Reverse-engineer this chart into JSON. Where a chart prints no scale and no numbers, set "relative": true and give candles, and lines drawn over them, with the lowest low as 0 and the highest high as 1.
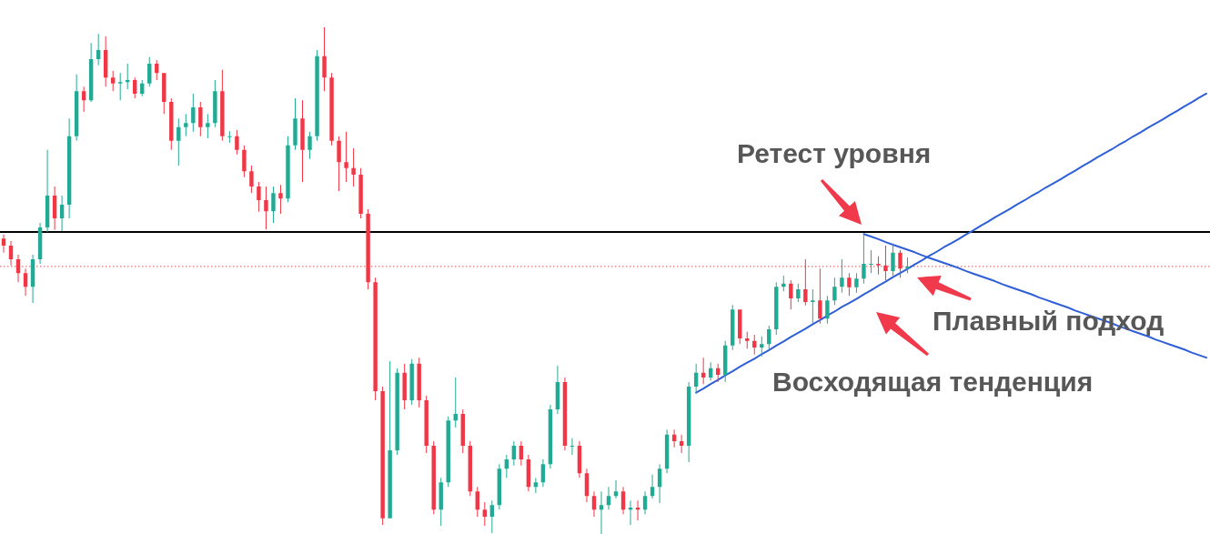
{
  "chart_data": {
    "type": "candlestick",
    "relative": true,
    "categories": [
      null,
      null,
      null,
      null,
      null,
      null,
      null,
      null,
      null,
      null,
      null,
      null,
      null,
      null,
      null,
      null,
      null,
      null,
      null,
      null,
      null,
      null,
      null,
      null,
      null,
      null,
      null,
      null,
      null,
      null,
      null,
      null,
      null,
      null,
      null,
      null,
      null,
      null,
      null,
      null,
      null,
      null,
      null,
      null,
      null,
      null,
      null,
      null,
      null,
      null,
      null,
      null,
      null,
      null,
      null,
      null,
      null,
      null,
      null,
      null,
      null,
      null,
      null,
      null,
      null,
      null,
      null,
      null,
      null,
      null,
      null,
      null,
      null,
      null,
      null,
      null,
      null,
      null,
      null,
      null,
      null,
      null,
      null,
      null,
      null,
      null,
      null,
      null,
      null,
      null,
      null,
      null,
      null,
      null,
      null,
      null,
      null,
      null,
      null,
      null,
      null,
      null,
      null,
      null,
      null,
      null,
      null,
      null,
      null,
      null,
      null,
      null,
      null,
      null,
      null,
      null,
      null,
      null,
      null,
      null,
      null,
      null,
      null,
      null,
      null,
      null,
      null,
      null,
      null,
      null,
      null,
      null,
      null,
      null,
      null,
      null,
      null,
      null,
      null,
      null,
      null,
      null,
      null,
      null,
      null,
      null,
      null,
      null,
      null,
      null,
      null,
      null,
      null,
      null,
      null,
      null,
      null,
      null,
      null,
      null,
      null,
      null,
      null,
      null,
      null,
      null
    ],
    "ohlc": [
      [
        0.583,
        0.591,
        0.555,
        0.569
      ],
      [
        0.569,
        0.578,
        0.53,
        0.542
      ],
      [
        0.542,
        0.551,
        0.497,
        0.515
      ],
      [
        0.515,
        0.524,
        0.47,
        0.488
      ],
      [
        0.488,
        0.551,
        0.456,
        0.542
      ],
      [
        0.542,
        0.614,
        0.533,
        0.605
      ],
      [
        0.605,
        0.758,
        0.596,
        0.668
      ],
      [
        0.668,
        0.686,
        0.6,
        0.623
      ],
      [
        0.623,
        0.668,
        0.598,
        0.65
      ],
      [
        0.65,
        0.82,
        0.623,
        0.785
      ],
      [
        0.785,
        0.907,
        0.776,
        0.874
      ],
      [
        0.874,
        0.883,
        0.833,
        0.856
      ],
      [
        0.856,
        0.969,
        0.853,
        0.937
      ],
      [
        0.937,
        0.987,
        0.925,
        0.955
      ],
      [
        0.955,
        0.982,
        0.883,
        0.901
      ],
      [
        0.901,
        0.914,
        0.874,
        0.889
      ],
      [
        0.889,
        0.91,
        0.856,
        0.892
      ],
      [
        0.892,
        0.928,
        0.878,
        0.896
      ],
      [
        0.896,
        0.901,
        0.86,
        0.869
      ],
      [
        0.869,
        0.896,
        0.864,
        0.889
      ],
      [
        0.889,
        0.941,
        0.883,
        0.928
      ],
      [
        0.928,
        0.935,
        0.896,
        0.91
      ],
      [
        0.91,
        0.91,
        0.829,
        0.853
      ],
      [
        0.853,
        0.86,
        0.758,
        0.776
      ],
      [
        0.776,
        0.82,
        0.727,
        0.803
      ],
      [
        0.803,
        0.829,
        0.785,
        0.811
      ],
      [
        0.811,
        0.869,
        0.794,
        0.842
      ],
      [
        0.842,
        0.853,
        0.785,
        0.803
      ],
      [
        0.803,
        0.829,
        0.781,
        0.811
      ],
      [
        0.811,
        0.896,
        0.803,
        0.874
      ],
      [
        0.874,
        0.916,
        0.776,
        0.785
      ],
      [
        0.785,
        0.795,
        0.772,
        0.785
      ],
      [
        0.785,
        0.797,
        0.749,
        0.758
      ],
      [
        0.758,
        0.767,
        0.704,
        0.716
      ],
      [
        0.716,
        0.727,
        0.673,
        0.686
      ],
      [
        0.686,
        0.695,
        0.636,
        0.659
      ],
      [
        0.659,
        0.686,
        0.601,
        0.637
      ],
      [
        0.637,
        0.686,
        0.614,
        0.673
      ],
      [
        0.673,
        0.689,
        0.632,
        0.662
      ],
      [
        0.662,
        0.785,
        0.655,
        0.767
      ],
      [
        0.767,
        0.86,
        0.758,
        0.82
      ],
      [
        0.82,
        0.856,
        0.695,
        0.758
      ],
      [
        0.758,
        0.794,
        0.74,
        0.785
      ],
      [
        0.785,
        0.955,
        0.776,
        0.943
      ],
      [
        0.943,
        1,
        0.874,
        0.901
      ],
      [
        0.901,
        0.91,
        0.767,
        0.776
      ],
      [
        0.776,
        0.785,
        0.677,
        0.734
      ],
      [
        0.734,
        0.794,
        0.695,
        0.722
      ],
      [
        0.722,
        0.761,
        0.686,
        0.709
      ],
      [
        0.709,
        0.722,
        0.623,
        0.632
      ],
      [
        0.632,
        0.641,
        0.483,
        0.497
      ],
      [
        0.497,
        0.506,
        0.264,
        0.282
      ],
      [
        0.282,
        0.291,
        0.018,
        0.031
      ],
      [
        0.031,
        0.341,
        0.031,
        0.165
      ],
      [
        0.165,
        0.327,
        0.156,
        0.318
      ],
      [
        0.318,
        0.336,
        0.246,
        0.264
      ],
      [
        0.264,
        0.345,
        0.255,
        0.336
      ],
      [
        0.336,
        0.348,
        0.25,
        0.264
      ],
      [
        0.264,
        0.273,
        0.16,
        0.174
      ],
      [
        0.174,
        0.183,
        0.039,
        0.048
      ],
      [
        0.048,
        0.111,
        0.016,
        0.102
      ],
      [
        0.102,
        0.232,
        0.093,
        0.224
      ],
      [
        0.224,
        0.309,
        0.21,
        0.237
      ],
      [
        0.237,
        0.246,
        0.16,
        0.174
      ],
      [
        0.174,
        0.183,
        0.075,
        0.084
      ],
      [
        0.084,
        0.093,
        0.034,
        0.048
      ],
      [
        0.048,
        0.063,
        0.016,
        0.034
      ],
      [
        0.034,
        0.066,
        0.002,
        0.057
      ],
      [
        0.057,
        0.138,
        0.048,
        0.129
      ],
      [
        0.129,
        0.156,
        0.111,
        0.147
      ],
      [
        0.147,
        0.183,
        0.135,
        0.174
      ],
      [
        0.174,
        0.183,
        0.135,
        0.147
      ],
      [
        0.147,
        0.156,
        0.084,
        0.093
      ],
      [
        0.093,
        0.111,
        0.081,
        0.102
      ],
      [
        0.102,
        0.147,
        0.093,
        0.138
      ],
      [
        0.138,
        0.255,
        0.129,
        0.246
      ],
      [
        0.246,
        0.332,
        0.237,
        0.3
      ],
      [
        0.3,
        0.309,
        0.165,
        0.174
      ],
      [
        0.174,
        0.189,
        0.156,
        0.174
      ],
      [
        0.174,
        0.183,
        0.111,
        0.12
      ],
      [
        0.12,
        0.129,
        0.063,
        0.075
      ],
      [
        0.075,
        0.084,
        0.034,
        0.048
      ],
      [
        0.048,
        0.084,
        0,
        0.057
      ],
      [
        0.057,
        0.093,
        0.048,
        0.075
      ],
      [
        0.075,
        0.106,
        0.07,
        0.084
      ],
      [
        0.084,
        0.093,
        0.039,
        0.048
      ],
      [
        0.048,
        0.066,
        0.018,
        0.052
      ],
      [
        0.052,
        0.066,
        0.027,
        0.048
      ],
      [
        0.048,
        0.084,
        0.039,
        0.075
      ],
      [
        0.075,
        0.117,
        0.07,
        0.093
      ],
      [
        0.093,
        0.138,
        0.061,
        0.129
      ],
      [
        0.129,
        0.206,
        0.12,
        0.196
      ],
      [
        0.196,
        0.206,
        0.171,
        0.183
      ],
      [
        0.183,
        0.196,
        0.16,
        0.174
      ],
      [
        0.174,
        0.3,
        0.142,
        0.291
      ],
      [
        0.291,
        0.336,
        0.278,
        0.318
      ],
      [
        0.318,
        0.348,
        0.296,
        0.309
      ],
      [
        0.309,
        0.339,
        0.303,
        0.327
      ],
      [
        0.327,
        0.336,
        0.3,
        0.314
      ],
      [
        0.314,
        0.381,
        0.3,
        0.372
      ],
      [
        0.372,
        0.452,
        0.363,
        0.443
      ],
      [
        0.443,
        0.443,
        0.375,
        0.386
      ],
      [
        0.386,
        0.399,
        0.366,
        0.381
      ],
      [
        0.381,
        0.393,
        0.354,
        0.368
      ],
      [
        0.368,
        0.39,
        0.35,
        0.375
      ],
      [
        0.375,
        0.411,
        0.363,
        0.404
      ],
      [
        0.404,
        0.497,
        0.393,
        0.488
      ],
      [
        0.488,
        0.51,
        0.479,
        0.494
      ],
      [
        0.494,
        0.501,
        0.443,
        0.465
      ],
      [
        0.465,
        0.494,
        0.458,
        0.483
      ],
      [
        0.483,
        0.542,
        0.451,
        0.458
      ],
      [
        0.458,
        0.483,
        0.415,
        0.461
      ],
      [
        0.461,
        0.524,
        0.415,
        0.425
      ],
      [
        0.425,
        0.47,
        0.415,
        0.461
      ],
      [
        0.461,
        0.506,
        0.452,
        0.488
      ],
      [
        0.488,
        0.542,
        0.476,
        0.506
      ],
      [
        0.506,
        0.515,
        0.47,
        0.487
      ],
      [
        0.487,
        0.515,
        0.476,
        0.504
      ],
      [
        0.504,
        0.592,
        0.494,
        0.533
      ],
      [
        0.533,
        0.56,
        0.515,
        0.533
      ],
      [
        0.533,
        0.548,
        0.512,
        0.53
      ],
      [
        0.53,
        0.569,
        0.501,
        0.519
      ],
      [
        0.519,
        0.573,
        0.51,
        0.555
      ],
      [
        0.555,
        0.56,
        0.506,
        0.524
      ],
      [
        0.524,
        0.546,
        0.515,
        0.528
      ],
      null,
      null,
      null,
      null,
      null,
      null,
      null,
      null,
      null,
      null,
      null,
      null,
      null,
      null,
      null,
      null,
      null,
      null,
      null,
      null,
      null,
      null,
      null,
      null,
      null,
      null,
      null,
      null,
      null,
      null,
      null,
      null,
      null,
      null,
      null,
      null,
      null,
      null,
      null,
      null,
      null
    ],
    "colors": [
      "#f23645",
      "#f23645",
      "#f23645",
      "#f23645",
      "#22ab94",
      "#22ab94",
      "#22ab94",
      "#f23645",
      "#22ab94",
      "#22ab94",
      "#22ab94",
      "#f23645",
      "#22ab94",
      "#22ab94",
      "#f23645",
      "#f23645",
      "#22ab94",
      "#22ab94",
      "#f23645",
      "#22ab94",
      "#22ab94",
      "#f23645",
      "#f23645",
      "#f23645",
      "#22ab94",
      "#22ab94",
      "#22ab94",
      "#f23645",
      "#22ab94",
      "#22ab94",
      "#f23645",
      "#22ab94",
      "#f23645",
      "#f23645",
      "#f23645",
      "#f23645",
      "#f23645",
      "#22ab94",
      "#f23645",
      "#22ab94",
      "#22ab94",
      "#f23645",
      "#22ab94",
      "#22ab94",
      "#f23645",
      "#f23645",
      "#f23645",
      "#f23645",
      "#f23645",
      "#f23645",
      "#f23645",
      "#f23645",
      "#f23645",
      "#22ab94",
      "#22ab94",
      "#f23645",
      "#22ab94",
      "#f23645",
      "#f23645",
      "#f23645",
      "#22ab94",
      "#22ab94",
      "#22ab94",
      "#f23645",
      "#f23645",
      "#f23645",
      "#f23645",
      "#22ab94",
      "#22ab94",
      "#22ab94",
      "#22ab94",
      "#f23645",
      "#f23645",
      "#22ab94",
      "#22ab94",
      "#22ab94",
      "#22ab94",
      "#f23645",
      "#22ab94",
      "#f23645",
      "#f23645",
      "#f23645",
      "#22ab94",
      "#22ab94",
      "#22ab94",
      "#f23645",
      "#22ab94",
      "#f23645",
      "#22ab94",
      "#22ab94",
      "#22ab94",
      "#22ab94",
      "#f23645",
      "#f23645",
      "#22ab94",
      "#22ab94",
      "#f23645",
      "#22ab94",
      "#f23645",
      "#22ab94",
      "#22ab94",
      "#f23645",
      "#f23645",
      "#f23645",
      "#22ab94",
      "#22ab94",
      "#22ab94",
      "#22ab94",
      "#f23645",
      "#22ab94",
      "#f23645",
      "#22ab94",
      "#f23645",
      "#22ab94",
      "#22ab94",
      "#22ab94",
      "#f23645",
      "#22ab94",
      "#22ab94",
      "#22ab94",
      "#f23645",
      "#f23645",
      "#22ab94",
      "#f23645",
      "#22ab94",
      null,
      null,
      null,
      null,
      null,
      null,
      null,
      null,
      null,
      null,
      null,
      null,
      null,
      null,
      null,
      null,
      null,
      null,
      null,
      null,
      null,
      null,
      null,
      null,
      null,
      null,
      null,
      null,
      null,
      null,
      null,
      null,
      null,
      null,
      null,
      null,
      null,
      null,
      null,
      null,
      null
    ],
    "series": [
      {
        "type": "line",
        "color": "#2f5fd6",
        "values": [
          null,
          null,
          null,
          null,
          null,
          null,
          null,
          null,
          null,
          null,
          null,
          null,
          null,
          null,
          null,
          null,
          null,
          null,
          null,
          null,
          null,
          null,
          null,
          null,
          null,
          null,
          null,
          null,
          null,
          null,
          null,
          null,
          null,
          null,
          null,
          null,
          null,
          null,
          null,
          null,
          null,
          null,
          null,
          null,
          null,
          null,
          null,
          null,
          null,
          null,
          null,
          null,
          null,
          null,
          null,
          null,
          null,
          null,
          null,
          null,
          null,
          null,
          null,
          null,
          null,
          null,
          null,
          null,
          null,
          null,
          null,
          null,
          null,
          null,
          null,
          null,
          null,
          null,
          null,
          null,
          null,
          null,
          null,
          null,
          null,
          null,
          null,
          null,
          null,
          null,
          null,
          null,
          null,
          null,
          null,
          0.279,
          0.287,
          0.296,
          0.304,
          0.313,
          0.321,
          0.33,
          0.338,
          0.346,
          0.355,
          0.363,
          0.372,
          0.38,
          0.389,
          0.397,
          0.405,
          0.414,
          0.422,
          0.431,
          0.439,
          0.448,
          0.456,
          0.464,
          0.473,
          0.481,
          0.49,
          0.498,
          0.507,
          0.515,
          0.523,
          0.532,
          0.54,
          0.549,
          0.557,
          0.566,
          0.574,
          0.582,
          0.591,
          0.599,
          0.608,
          0.616,
          0.625,
          0.633,
          0.641,
          0.65,
          0.658,
          0.667,
          0.675,
          0.684,
          0.692,
          0.7,
          0.709,
          0.717,
          0.726,
          0.734,
          0.743,
          0.751,
          0.759,
          0.768,
          0.776,
          0.785,
          0.793,
          0.802,
          0.81,
          0.818,
          0.827,
          0.835,
          0.844,
          0.852,
          0.861,
          0.869
        ]
      },
      {
        "type": "line",
        "color": "#2f5fd6",
        "values": [
          null,
          null,
          null,
          null,
          null,
          null,
          null,
          null,
          null,
          null,
          null,
          null,
          null,
          null,
          null,
          null,
          null,
          null,
          null,
          null,
          null,
          null,
          null,
          null,
          null,
          null,
          null,
          null,
          null,
          null,
          null,
          null,
          null,
          null,
          null,
          null,
          null,
          null,
          null,
          null,
          null,
          null,
          null,
          null,
          null,
          null,
          null,
          null,
          null,
          null,
          null,
          null,
          null,
          null,
          null,
          null,
          null,
          null,
          null,
          null,
          null,
          null,
          null,
          null,
          null,
          null,
          null,
          null,
          null,
          null,
          null,
          null,
          null,
          null,
          null,
          null,
          null,
          null,
          null,
          null,
          null,
          null,
          null,
          null,
          null,
          null,
          null,
          null,
          null,
          null,
          null,
          null,
          null,
          null,
          null,
          null,
          null,
          null,
          null,
          null,
          null,
          null,
          null,
          null,
          null,
          null,
          null,
          null,
          null,
          null,
          null,
          null,
          null,
          null,
          null,
          null,
          null,
          null,
          0.592,
          0.587,
          0.582,
          0.576,
          0.571,
          0.566,
          0.561,
          0.556,
          0.55,
          0.545,
          0.54,
          0.535,
          0.53,
          0.525,
          0.519,
          0.514,
          0.509,
          0.504,
          0.499,
          0.493,
          0.488,
          0.483,
          0.478,
          0.473,
          0.467,
          0.462,
          0.457,
          0.452,
          0.447,
          0.441,
          0.436,
          0.431,
          0.426,
          0.421,
          0.416,
          0.41,
          0.405,
          0.4,
          0.395,
          0.39,
          0.384,
          0.379,
          0.374,
          0.369,
          0.364,
          0.358,
          0.353,
          0.348
        ]
      }
    ],
    "ref_lines": [
      {
        "axis": "y",
        "value": 0.596,
        "color": "#000000",
        "line_style": "solid"
      },
      {
        "axis": "y",
        "value": 0.528,
        "color": "#d0525a",
        "line_style": "dotted"
      }
    ],
    "annotations": [
      "Ретест уровня",
      "Плавный подход",
      "Восходящая тенденция"
    ]
  }
}
